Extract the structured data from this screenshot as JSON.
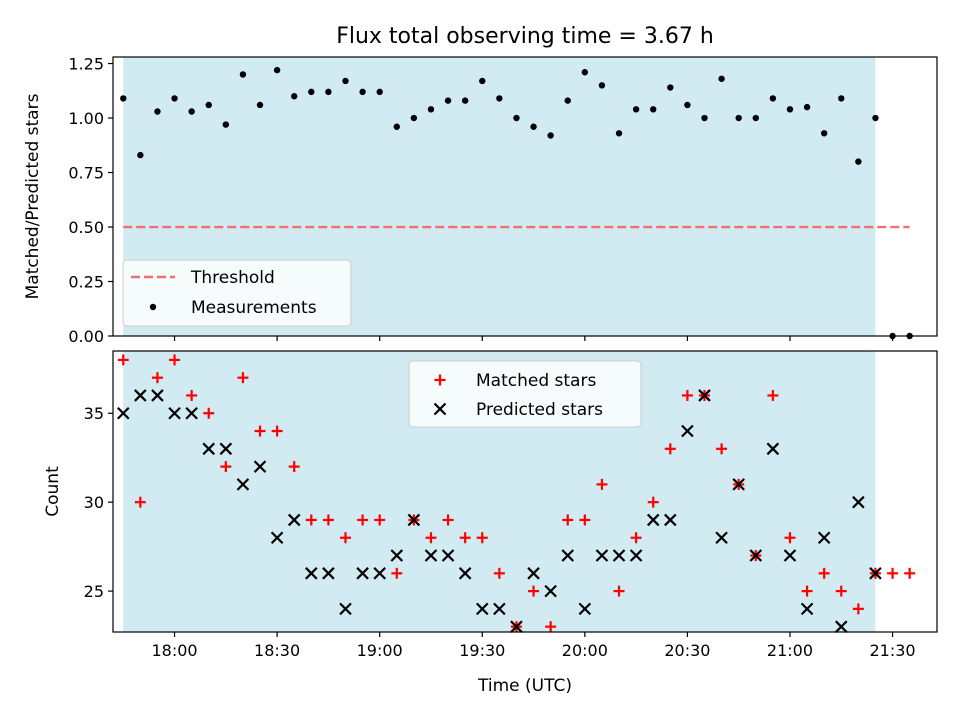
{
  "title": "Flux total observing time = 3.67 h",
  "colors": {
    "shade": "#add8e6",
    "threshold": "#f07070",
    "matched": "#ff0000",
    "predicted": "#000000",
    "measurement": "#000000"
  },
  "chart_data": [
    {
      "type": "scatter",
      "panel": "top",
      "ylabel": "Matched/Predicted stars",
      "xlabel": "",
      "xlim": [
        "17:42",
        "21:43"
      ],
      "ylim": [
        0,
        1.28
      ],
      "yticks": [
        "0.00",
        "0.25",
        "0.50",
        "0.75",
        "1.00",
        "1.25"
      ],
      "ytick_values": [
        0,
        0.25,
        0.5,
        0.75,
        1.0,
        1.25
      ],
      "shaded_span": [
        "17:45",
        "21:25"
      ],
      "legend": {
        "placement": "lower-left",
        "entries": [
          "Threshold",
          "Measurements"
        ]
      },
      "series": [
        {
          "name": "Threshold",
          "style": "dashed-line",
          "x": [
            "17:45",
            "21:35"
          ],
          "y": [
            0.5,
            0.5
          ]
        },
        {
          "name": "Measurements",
          "style": "dot",
          "x": [
            "17:45",
            "17:50",
            "17:55",
            "18:00",
            "18:05",
            "18:10",
            "18:15",
            "18:20",
            "18:25",
            "18:30",
            "18:35",
            "18:40",
            "18:45",
            "18:50",
            "18:55",
            "19:00",
            "19:05",
            "19:10",
            "19:15",
            "19:20",
            "19:25",
            "19:30",
            "19:35",
            "19:40",
            "19:45",
            "19:50",
            "19:55",
            "20:00",
            "20:05",
            "20:10",
            "20:15",
            "20:20",
            "20:25",
            "20:30",
            "20:35",
            "20:40",
            "20:45",
            "20:50",
            "20:55",
            "21:00",
            "21:05",
            "21:10",
            "21:15",
            "21:20",
            "21:25",
            "21:30",
            "21:35"
          ],
          "y": [
            1.09,
            0.83,
            1.03,
            1.09,
            1.03,
            1.06,
            0.97,
            1.2,
            1.06,
            1.22,
            1.1,
            1.12,
            1.12,
            1.17,
            1.12,
            1.12,
            0.96,
            1.0,
            1.04,
            1.08,
            1.08,
            1.17,
            1.09,
            1.0,
            0.96,
            0.92,
            1.08,
            1.21,
            1.15,
            0.93,
            1.04,
            1.04,
            1.14,
            1.06,
            1.0,
            1.18,
            1.0,
            1.0,
            1.09,
            1.04,
            1.05,
            0.93,
            1.09,
            0.8,
            1.0,
            0.0,
            0.0
          ]
        }
      ]
    },
    {
      "type": "scatter",
      "panel": "bottom",
      "ylabel": "Count",
      "xlabel": "Time (UTC)",
      "xlim": [
        "17:42",
        "21:43"
      ],
      "ylim": [
        22.7,
        38.5
      ],
      "yticks": [
        "25",
        "30",
        "35"
      ],
      "ytick_values": [
        25,
        30,
        35
      ],
      "xticks": [
        "18:00",
        "18:30",
        "19:00",
        "19:30",
        "20:00",
        "20:30",
        "21:00",
        "21:30"
      ],
      "shaded_span": [
        "17:45",
        "21:25"
      ],
      "legend": {
        "placement": "top-center",
        "entries": [
          "Matched stars",
          "Predicted stars"
        ]
      },
      "series": [
        {
          "name": "Matched stars",
          "style": "plus",
          "x": [
            "17:45",
            "17:50",
            "17:55",
            "18:00",
            "18:05",
            "18:10",
            "18:15",
            "18:20",
            "18:25",
            "18:30",
            "18:35",
            "18:40",
            "18:45",
            "18:50",
            "18:55",
            "19:00",
            "19:05",
            "19:10",
            "19:15",
            "19:20",
            "19:25",
            "19:30",
            "19:35",
            "19:40",
            "19:45",
            "19:50",
            "19:55",
            "20:00",
            "20:05",
            "20:10",
            "20:15",
            "20:20",
            "20:25",
            "20:30",
            "20:35",
            "20:40",
            "20:45",
            "20:50",
            "20:55",
            "21:00",
            "21:05",
            "21:10",
            "21:15",
            "21:20",
            "21:25",
            "21:30",
            "21:35"
          ],
          "y": [
            38,
            30,
            37,
            38,
            36,
            35,
            32,
            37,
            34,
            34,
            32,
            29,
            29,
            28,
            29,
            29,
            26,
            29,
            28,
            29,
            28,
            28,
            26,
            23,
            25,
            23,
            29,
            29,
            31,
            25,
            28,
            30,
            33,
            36,
            36,
            33,
            31,
            27,
            36,
            28,
            25,
            26,
            25,
            24,
            26,
            26,
            26
          ]
        },
        {
          "name": "Predicted stars",
          "style": "cross",
          "x": [
            "17:45",
            "17:50",
            "17:55",
            "18:00",
            "18:05",
            "18:10",
            "18:15",
            "18:20",
            "18:25",
            "18:30",
            "18:35",
            "18:40",
            "18:45",
            "18:50",
            "18:55",
            "19:00",
            "19:05",
            "19:10",
            "19:15",
            "19:20",
            "19:25",
            "19:30",
            "19:35",
            "19:40",
            "19:45",
            "19:50",
            "19:55",
            "20:00",
            "20:05",
            "20:10",
            "20:15",
            "20:20",
            "20:25",
            "20:30",
            "20:35",
            "20:40",
            "20:45",
            "20:50",
            "20:55",
            "21:00",
            "21:05",
            "21:10",
            "21:15",
            "21:20",
            "21:25"
          ],
          "y": [
            35,
            36,
            36,
            35,
            35,
            33,
            33,
            31,
            32,
            28,
            29,
            26,
            26,
            24,
            26,
            26,
            27,
            29,
            27,
            27,
            26,
            24,
            24,
            23,
            26,
            25,
            27,
            24,
            27,
            27,
            27,
            29,
            29,
            34,
            36,
            28,
            31,
            27,
            33,
            27,
            24,
            28,
            23,
            30,
            26
          ]
        }
      ]
    }
  ]
}
